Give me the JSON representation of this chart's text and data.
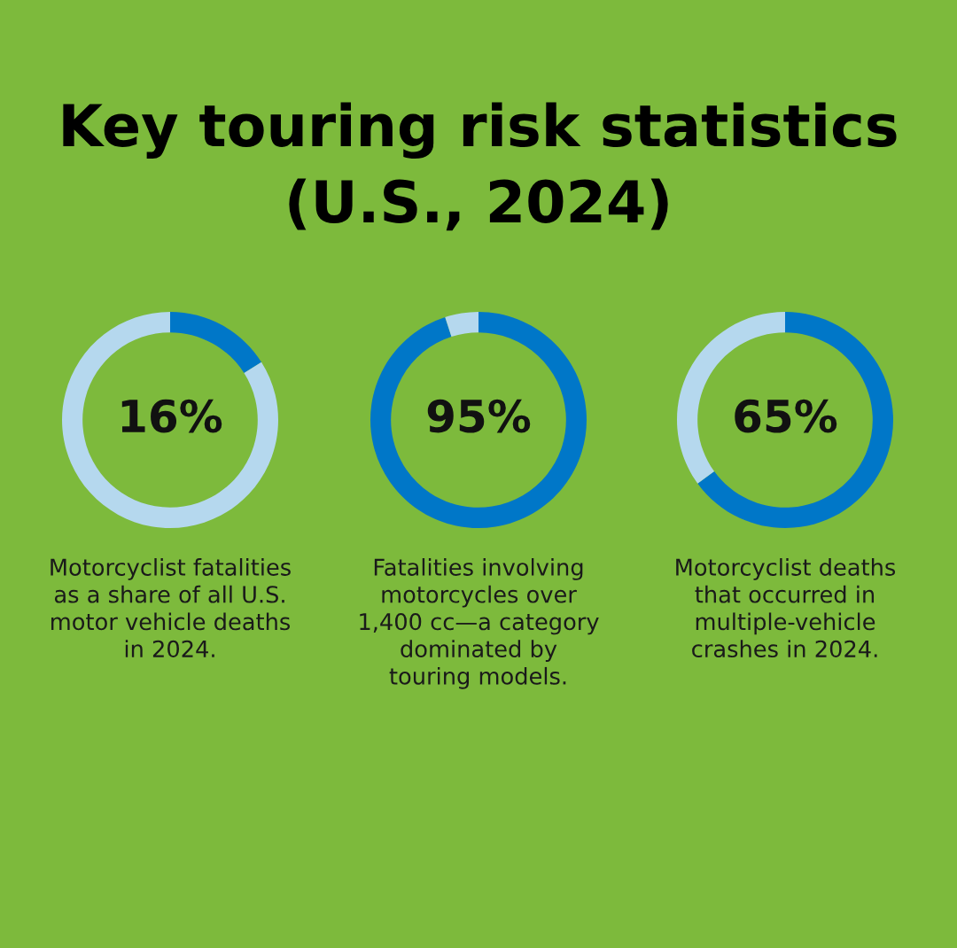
{
  "chart_data": [
    {
      "type": "donut",
      "title": "Key touring risk statistics\n(U.S., 2024)",
      "categories": [
        null,
        null
      ],
      "values": [
        16,
        84
      ],
      "colors": [
        "#0077c8",
        "#b5d8ee"
      ],
      "value_labels": [
        "16%",
        null
      ],
      "annotations": [
        "Motorcyclist fatalities\nas a share of all U.S.\nmotor vehicle deaths\nin 2024."
      ],
      "legend": false
    },
    {
      "type": "donut",
      "categories": [
        null,
        null
      ],
      "values": [
        95,
        5
      ],
      "colors": [
        "#0077c8",
        "#b5d8ee"
      ],
      "value_labels": [
        "95%",
        null
      ],
      "annotations": [
        "Fatalities involving\nmotorcycles over\n1,400 cc—a category\ndominated by\ntouring models."
      ],
      "legend": false
    },
    {
      "type": "donut",
      "categories": [
        null,
        null
      ],
      "values": [
        65,
        35
      ],
      "colors": [
        "#0077c8",
        "#b5d8ee"
      ],
      "value_labels": [
        "65%",
        null
      ],
      "annotations": [
        "Motorcyclist deaths\nthat occurred in\nmultiple-vehicle\ncrashes in 2024."
      ],
      "legend": false
    }
  ]
}
